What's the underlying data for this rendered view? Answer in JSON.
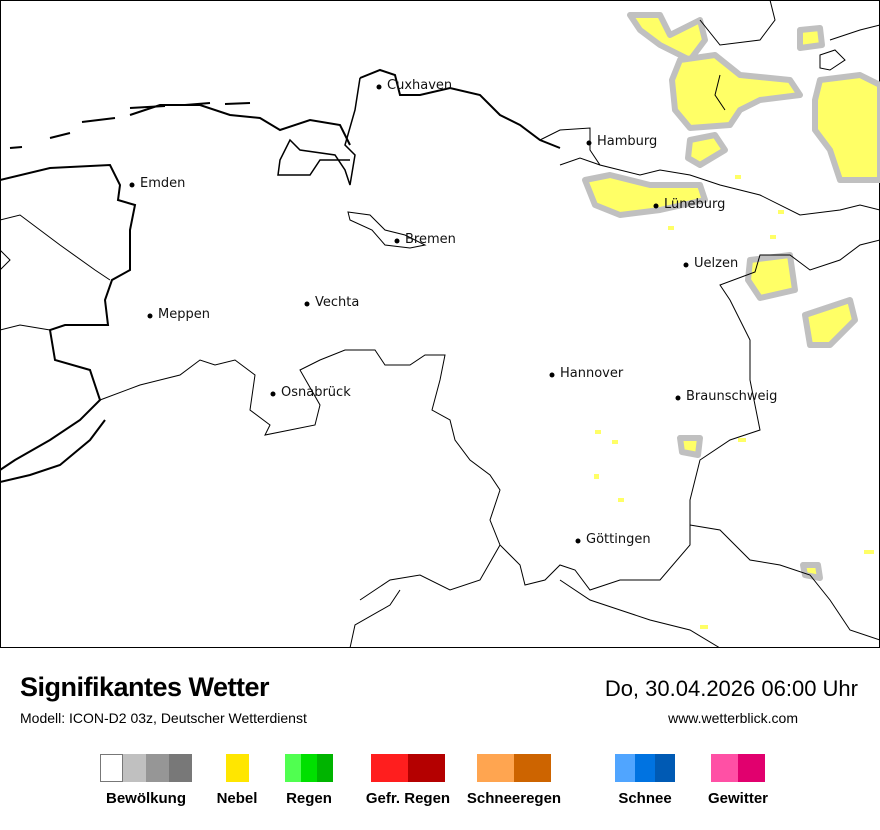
{
  "map": {
    "cities": [
      "Cuxhaven",
      "Hamburg",
      "Emden",
      "Lüneburg",
      "Bremen",
      "Uelzen",
      "Vechta",
      "Meppen",
      "Hannover",
      "Osnabrück",
      "Braunschweig",
      "Göttingen"
    ],
    "fog_color": "#ffff66",
    "cloud_color": "#c0c0c0"
  },
  "footer": {
    "title": "Signifikantes Wetter",
    "subtitle": "Modell: ICON-D2 03z, Deutscher Wetterdienst",
    "datetime": "Do, 30.04.2026 06:00 Uhr",
    "website": "www.wetterblick.com"
  },
  "legend": [
    {
      "label": "Bewölkung",
      "colors": [
        "#ffffff",
        "#c0c0c0",
        "#969696",
        "#787878"
      ]
    },
    {
      "label": "Nebel",
      "colors": [
        "#ffe600"
      ]
    },
    {
      "label": "Regen",
      "colors": [
        "#50ff50",
        "#00e000",
        "#00b400"
      ]
    },
    {
      "label": "Gefr. Regen",
      "colors": [
        "#ff1e1e",
        "#b40000"
      ]
    },
    {
      "label": "Schneeregen",
      "colors": [
        "#ffa550",
        "#cd6400"
      ]
    },
    {
      "label": "Schnee",
      "colors": [
        "#50a5ff",
        "#0073e1",
        "#005ab4"
      ]
    },
    {
      "label": "Gewitter",
      "colors": [
        "#ff50a5",
        "#e1006e"
      ]
    }
  ]
}
